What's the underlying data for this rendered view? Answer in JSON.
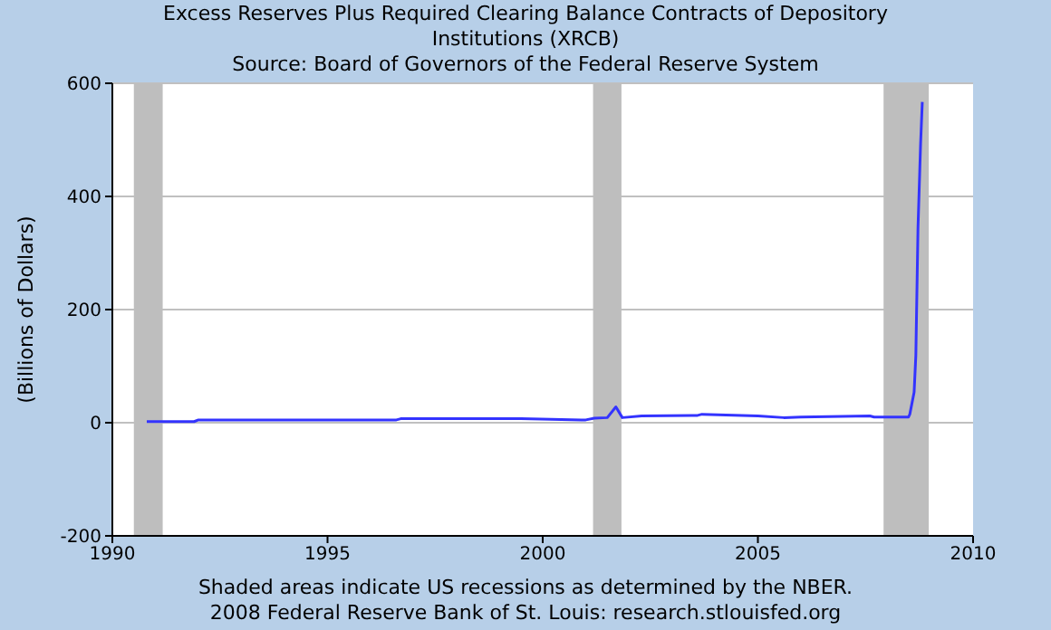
{
  "chart_data": {
    "type": "line",
    "title": "Excess Reserves Plus Required Clearing Balance Contracts of Depository Institutions (XRCB)",
    "subtitle": "Source: Board of Governors of the Federal Reserve System",
    "ylabel": "(Billions of Dollars)",
    "annotations": [
      "Shaded areas indicate US recessions as determined by the NBER.",
      "2008 Federal Reserve Bank of St. Louis: research.stlouisfed.org"
    ],
    "xlim": [
      1990,
      2010
    ],
    "xticks": [
      1990,
      1995,
      2000,
      2005,
      2010
    ],
    "ylim": [
      -200,
      600
    ],
    "yticks": [
      -200,
      0,
      200,
      400,
      600
    ],
    "grid": "y",
    "legend": false,
    "bands": [
      {
        "axis": "x",
        "from": 1990.5,
        "to": 1991.17,
        "color": "#bebebe"
      },
      {
        "axis": "x",
        "from": 2001.17,
        "to": 2001.83,
        "color": "#bebebe"
      },
      {
        "axis": "x",
        "from": 2007.92,
        "to": 2008.97,
        "color": "#bebebe"
      }
    ],
    "series": [
      {
        "color": "#3333ff",
        "x": [
          1990.8,
          1991.5,
          1991.9,
          1992.0,
          1994.0,
          1996.6,
          1996.7,
          1999.5,
          2000.9,
          2001.0,
          2001.2,
          2001.5,
          2001.7,
          2001.85,
          2002.3,
          2003.6,
          2003.7,
          2005.0,
          2005.6,
          2006.0,
          2007.6,
          2007.7,
          2008.5,
          2008.53,
          2008.63,
          2008.67,
          2008.72,
          2008.78,
          2008.82
        ],
        "values": [
          2,
          2,
          2,
          5,
          5,
          5,
          7,
          7,
          5,
          5,
          8,
          9,
          28,
          9,
          12,
          13,
          15,
          12,
          9,
          10,
          12,
          10,
          10,
          15,
          54,
          119,
          344,
          492,
          567
        ]
      }
    ]
  }
}
